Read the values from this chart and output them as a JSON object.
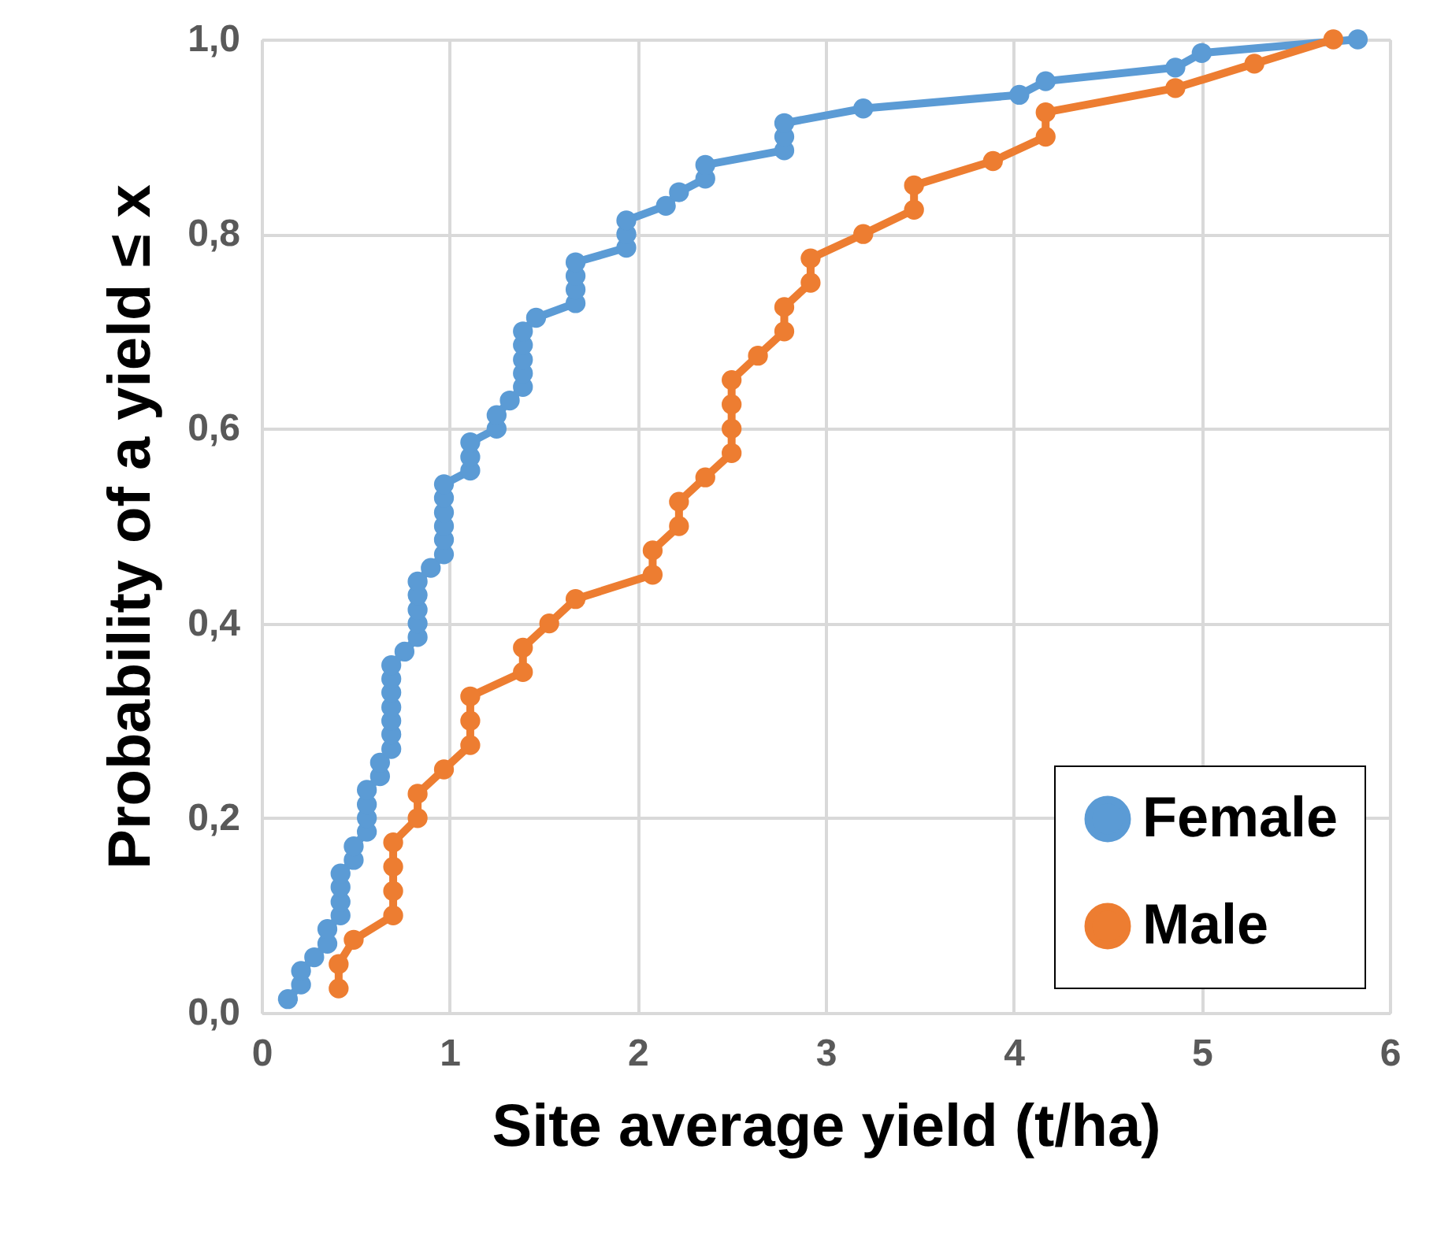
{
  "chart_data": {
    "type": "line",
    "xlabel": "Site average yield (t/ha)",
    "ylabel": "Probability of a yield ≤ x",
    "xlim": [
      0,
      6
    ],
    "xticks": [
      0,
      1,
      2,
      3,
      4,
      5,
      6
    ],
    "ylim": [
      0,
      1
    ],
    "yticks": [
      {
        "value": 0,
        "label": "0,0"
      },
      {
        "value": 0.2,
        "label": "0,2"
      },
      {
        "value": 0.4,
        "label": "0,4"
      },
      {
        "value": 0.6,
        "label": "0,6"
      },
      {
        "value": 0.8,
        "label": "0,8"
      },
      {
        "value": 1,
        "label": "1,0"
      }
    ],
    "grid": true,
    "legend": "bottom right",
    "marker": "circle",
    "line_style": "solid",
    "series": [
      {
        "name": "Female",
        "color": "#5b9bd5",
        "x": [
          0.14,
          0.21,
          0.21,
          0.28,
          0.35,
          0.35,
          0.42,
          0.42,
          0.42,
          0.42,
          0.49,
          0.49,
          0.56,
          0.56,
          0.56,
          0.56,
          0.63,
          0.63,
          0.69,
          0.69,
          0.69,
          0.69,
          0.69,
          0.69,
          0.69,
          0.76,
          0.83,
          0.83,
          0.83,
          0.83,
          0.83,
          0.9,
          0.97,
          0.97,
          0.97,
          0.97,
          0.97,
          0.97,
          1.11,
          1.11,
          1.11,
          1.25,
          1.25,
          1.32,
          1.39,
          1.39,
          1.39,
          1.39,
          1.39,
          1.46,
          1.67,
          1.67,
          1.67,
          1.67,
          1.94,
          1.94,
          1.94,
          2.15,
          2.22,
          2.36,
          2.36,
          2.78,
          2.78,
          2.78,
          3.2,
          4.03,
          4.17,
          4.86,
          5.0,
          5.83
        ],
        "values": [
          0.014,
          0.029,
          0.043,
          0.057,
          0.071,
          0.086,
          0.1,
          0.114,
          0.129,
          0.143,
          0.157,
          0.171,
          0.186,
          0.2,
          0.214,
          0.229,
          0.243,
          0.257,
          0.271,
          0.286,
          0.3,
          0.314,
          0.329,
          0.343,
          0.357,
          0.371,
          0.386,
          0.4,
          0.414,
          0.429,
          0.443,
          0.457,
          0.471,
          0.486,
          0.5,
          0.514,
          0.529,
          0.543,
          0.557,
          0.571,
          0.586,
          0.6,
          0.614,
          0.629,
          0.643,
          0.657,
          0.671,
          0.686,
          0.7,
          0.714,
          0.729,
          0.743,
          0.757,
          0.771,
          0.786,
          0.8,
          0.814,
          0.829,
          0.843,
          0.857,
          0.871,
          0.886,
          0.9,
          0.914,
          0.929,
          0.943,
          0.957,
          0.971,
          0.986,
          1.0
        ]
      },
      {
        "name": "Male",
        "color": "#ed7d31",
        "x": [
          0.41,
          0.41,
          0.49,
          0.7,
          0.7,
          0.7,
          0.7,
          0.83,
          0.83,
          0.97,
          1.11,
          1.11,
          1.11,
          1.39,
          1.39,
          1.53,
          1.67,
          2.08,
          2.08,
          2.22,
          2.22,
          2.36,
          2.5,
          2.5,
          2.5,
          2.5,
          2.64,
          2.78,
          2.78,
          2.92,
          2.92,
          3.2,
          3.47,
          3.47,
          3.89,
          4.17,
          4.17,
          4.86,
          5.28,
          5.7
        ],
        "values": [
          0.025,
          0.05,
          0.075,
          0.1,
          0.125,
          0.15,
          0.175,
          0.2,
          0.225,
          0.25,
          0.275,
          0.3,
          0.325,
          0.35,
          0.375,
          0.4,
          0.425,
          0.45,
          0.475,
          0.5,
          0.525,
          0.55,
          0.575,
          0.6,
          0.625,
          0.65,
          0.675,
          0.7,
          0.725,
          0.75,
          0.775,
          0.8,
          0.825,
          0.85,
          0.875,
          0.9,
          0.925,
          0.95,
          0.975,
          1.0
        ]
      }
    ]
  }
}
